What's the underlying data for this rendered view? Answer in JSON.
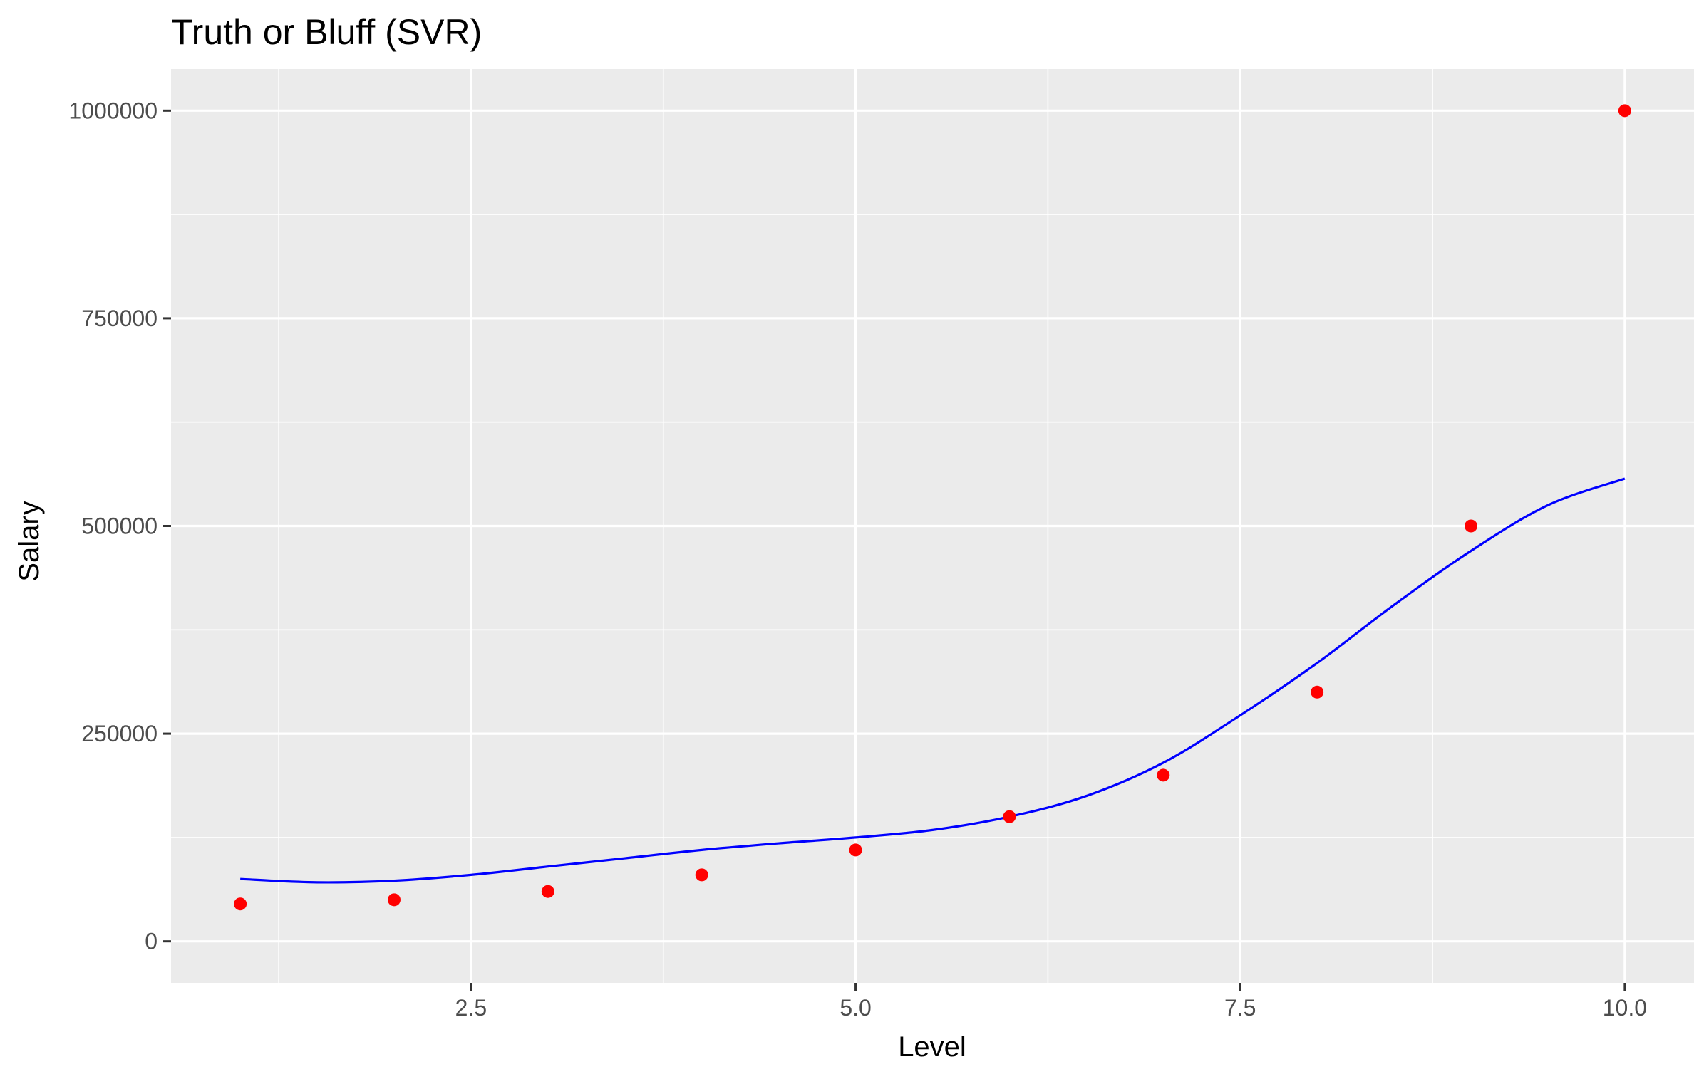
{
  "chart_data": {
    "type": "scatter",
    "title": "Truth or Bluff (SVR)",
    "xlabel": "Level",
    "ylabel": "Salary",
    "xlim": [
      0.55,
      10.45
    ],
    "ylim": [
      -50000,
      1050000
    ],
    "x_ticks": [
      2.5,
      5.0,
      7.5,
      10.0
    ],
    "x_tick_labels": [
      "2.5",
      "5.0",
      "7.5",
      "10.0"
    ],
    "x_minor_ticks": [
      1.25,
      3.75,
      6.25,
      8.75
    ],
    "y_ticks": [
      0,
      250000,
      500000,
      750000,
      1000000
    ],
    "y_tick_labels": [
      "0",
      "250000",
      "500000",
      "750000",
      "1000000"
    ],
    "y_minor_ticks": [
      125000,
      375000,
      625000,
      875000
    ],
    "grid": true,
    "panel_background": "#EBEBEB",
    "series": [
      {
        "kind": "points",
        "color": "#FF0000",
        "x": [
          1,
          2,
          3,
          4,
          5,
          6,
          7,
          8,
          9,
          10
        ],
        "y": [
          45000,
          50000,
          60000,
          80000,
          110000,
          150000,
          200000,
          300000,
          500000,
          1000000
        ]
      },
      {
        "kind": "line",
        "color": "#0000FF",
        "x": [
          1,
          1.5,
          2,
          2.5,
          3,
          3.5,
          4,
          4.5,
          5,
          5.5,
          6,
          6.5,
          7,
          7.5,
          8,
          8.5,
          9,
          9.5,
          10
        ],
        "y": [
          75000,
          71000,
          73000,
          80000,
          90000,
          100000,
          110000,
          118000,
          125000,
          134000,
          150000,
          175000,
          215000,
          272000,
          335000,
          405000,
          470000,
          525000,
          557000
        ]
      }
    ]
  }
}
